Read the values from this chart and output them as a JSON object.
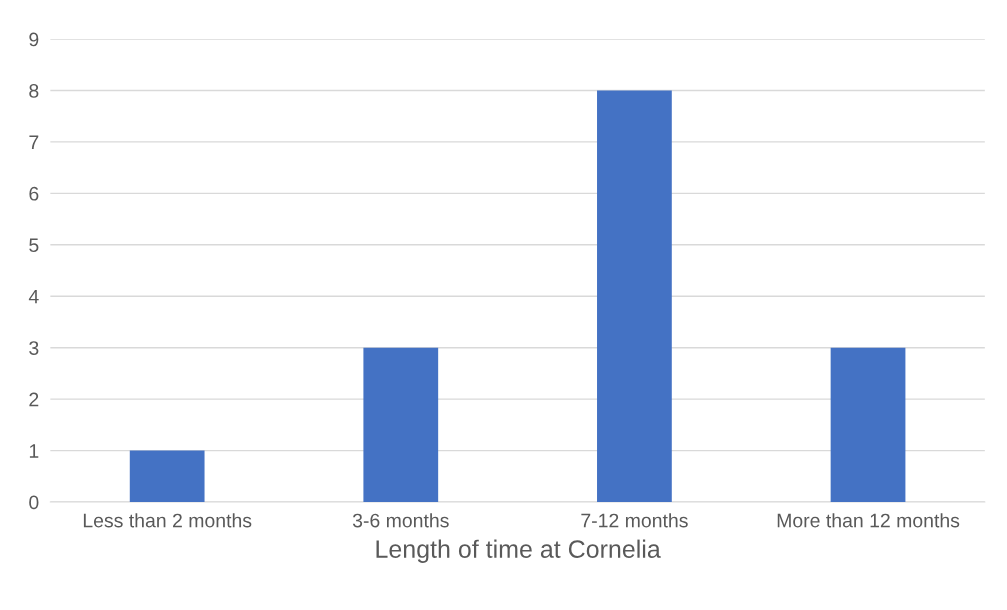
{
  "chart_data": {
    "type": "bar",
    "xlabel": "Length of time at Cornelia",
    "categories": [
      "Less than 2 months",
      "3-6 months",
      "7-12 months",
      "More than 12 months"
    ],
    "values": [
      1,
      3,
      8,
      3
    ],
    "color": "#4472c4",
    "ylim": [
      0,
      9
    ],
    "yticks": [
      0,
      1,
      2,
      3,
      4,
      5,
      6,
      7,
      8,
      9
    ],
    "grid": "y",
    "legend": false
  }
}
